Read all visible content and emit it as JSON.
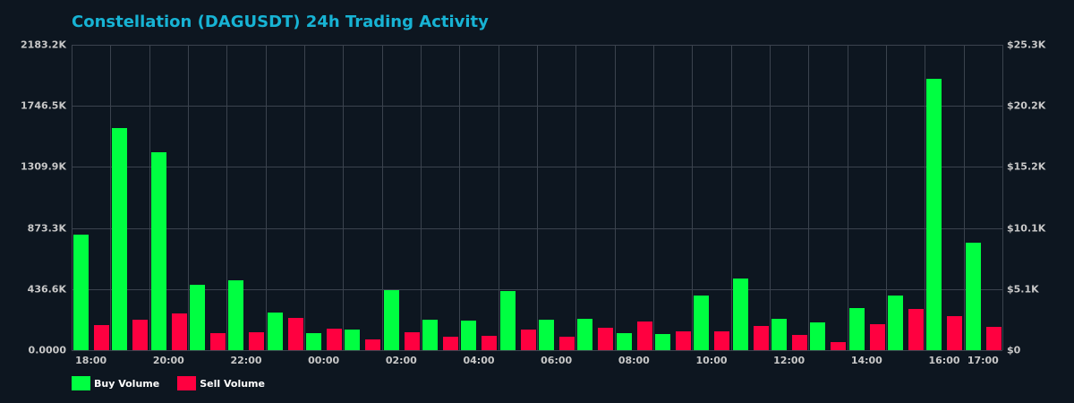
{
  "title": "Constellation (DAGUSDT) 24h Trading Activity",
  "colors": {
    "background": "#0d1620",
    "title": "#17b3d4",
    "grid": "#3b434e",
    "buy": "#00ff41",
    "sell": "#ff0040",
    "axis_text": "#c8c8c8"
  },
  "legend": {
    "buy_label": "Buy Volume",
    "sell_label": "Sell Volume"
  },
  "y_left_ticks": [
    "2183.2K",
    "1746.5K",
    "1309.9K",
    "873.3K",
    "436.6K",
    "0.0000"
  ],
  "y_right_ticks": [
    "$25.3K",
    "$20.2K",
    "$15.2K",
    "$10.1K",
    "$5.1K",
    "$0"
  ],
  "x_tick_labels": [
    {
      "slot": 0,
      "label": "18:00"
    },
    {
      "slot": 2,
      "label": "20:00"
    },
    {
      "slot": 4,
      "label": "22:00"
    },
    {
      "slot": 6,
      "label": "00:00"
    },
    {
      "slot": 8,
      "label": "02:00"
    },
    {
      "slot": 10,
      "label": "04:00"
    },
    {
      "slot": 12,
      "label": "06:00"
    },
    {
      "slot": 14,
      "label": "08:00"
    },
    {
      "slot": 16,
      "label": "10:00"
    },
    {
      "slot": 18,
      "label": "12:00"
    },
    {
      "slot": 20,
      "label": "14:00"
    },
    {
      "slot": 22,
      "label": "16:00"
    },
    {
      "slot": 23,
      "label": "17:00"
    }
  ],
  "chart_data": {
    "type": "bar",
    "title": "Constellation (DAGUSDT) 24h Trading Activity",
    "xlabel": "",
    "ylabel": "",
    "ylim": [
      0,
      2183.2
    ],
    "y_unit": "K",
    "y2lim": [
      0,
      25.3
    ],
    "y2_unit": "$K",
    "grid": true,
    "legend_position": "bottom-left",
    "categories": [
      "18:00",
      "19:00",
      "20:00",
      "21:00",
      "22:00",
      "23:00",
      "00:00",
      "01:00",
      "02:00",
      "03:00",
      "04:00",
      "05:00",
      "06:00",
      "07:00",
      "08:00",
      "09:00",
      "10:00",
      "11:00",
      "12:00",
      "13:00",
      "14:00",
      "15:00",
      "16:00",
      "17:00"
    ],
    "series": [
      {
        "name": "Buy Volume",
        "color": "#00ff41",
        "values": [
          826,
          1588,
          1415,
          469,
          501,
          271,
          124,
          149,
          431,
          220,
          213,
          424,
          220,
          226,
          124,
          117,
          392,
          514,
          226,
          200,
          303,
          392,
          1942,
          770
        ]
      },
      {
        "name": "Sell Volume",
        "color": "#ff0040",
        "values": [
          181,
          220,
          264,
          124,
          130,
          232,
          156,
          79,
          130,
          98,
          104,
          149,
          98,
          162,
          207,
          136,
          136,
          175,
          111,
          60,
          188,
          296,
          245,
          168
        ]
      }
    ]
  }
}
